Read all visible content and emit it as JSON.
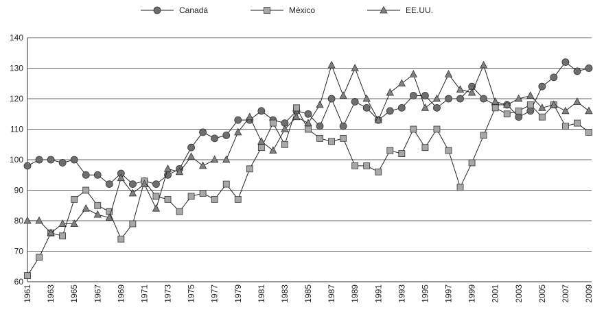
{
  "chart_data": {
    "type": "line",
    "categories": [
      "1961",
      null,
      "1963",
      null,
      "1965",
      null,
      "1967",
      null,
      "1969",
      null,
      "1971",
      null,
      "1973",
      null,
      "1975",
      null,
      "1977",
      null,
      "1979",
      null,
      "1981",
      null,
      "1983",
      null,
      "1985",
      null,
      "1987",
      null,
      "1989",
      null,
      "1991",
      null,
      "1993",
      null,
      "1995",
      null,
      "1997",
      null,
      "1999",
      null,
      "2001",
      null,
      "2003",
      null,
      "2005",
      null,
      "2007",
      null,
      "2009"
    ],
    "series": [
      {
        "name": "Canadá",
        "color": "#6e6e6e",
        "marker": "circle",
        "values": [
          98,
          100,
          100,
          99,
          100,
          95,
          95,
          92,
          95.5,
          92,
          93,
          92,
          95,
          97,
          104,
          109,
          107,
          108,
          113,
          113,
          116,
          113,
          112,
          116,
          115,
          111,
          120,
          111,
          119,
          117,
          113,
          116,
          117,
          121,
          121,
          117,
          120,
          120,
          124,
          120,
          118,
          118,
          114,
          116,
          124,
          127,
          132,
          129,
          130
        ]
      },
      {
        "name": "México",
        "color": "#a8a8a8",
        "marker": "square",
        "values": [
          62,
          68,
          76,
          75,
          87,
          90,
          85,
          83,
          74,
          79,
          93,
          88,
          87,
          83,
          88,
          89,
          87,
          92,
          87,
          97,
          104,
          112,
          105,
          117,
          110,
          107,
          106,
          107,
          98,
          98,
          96,
          103,
          102,
          110,
          104,
          110,
          103,
          91,
          99,
          108,
          117,
          115,
          116,
          118,
          114,
          118,
          111,
          112,
          109
        ]
      },
      {
        "name": "EE.UU.",
        "color": "#808080",
        "marker": "triangle",
        "values": [
          80,
          80,
          76,
          79,
          79,
          84,
          82,
          81,
          94,
          89,
          92,
          84,
          97,
          96,
          101,
          98,
          100,
          100,
          109,
          114,
          106,
          103,
          110,
          114,
          112,
          118,
          131,
          121,
          130,
          120,
          113,
          122,
          125,
          128,
          117,
          120,
          128,
          123,
          122,
          131,
          119,
          118,
          120,
          121,
          117,
          118,
          116,
          119,
          116
        ]
      }
    ],
    "ylim": [
      60,
      140
    ],
    "yticks": [
      60,
      70,
      80,
      90,
      100,
      110,
      120,
      130,
      140
    ],
    "grid": true,
    "legend": "top"
  }
}
